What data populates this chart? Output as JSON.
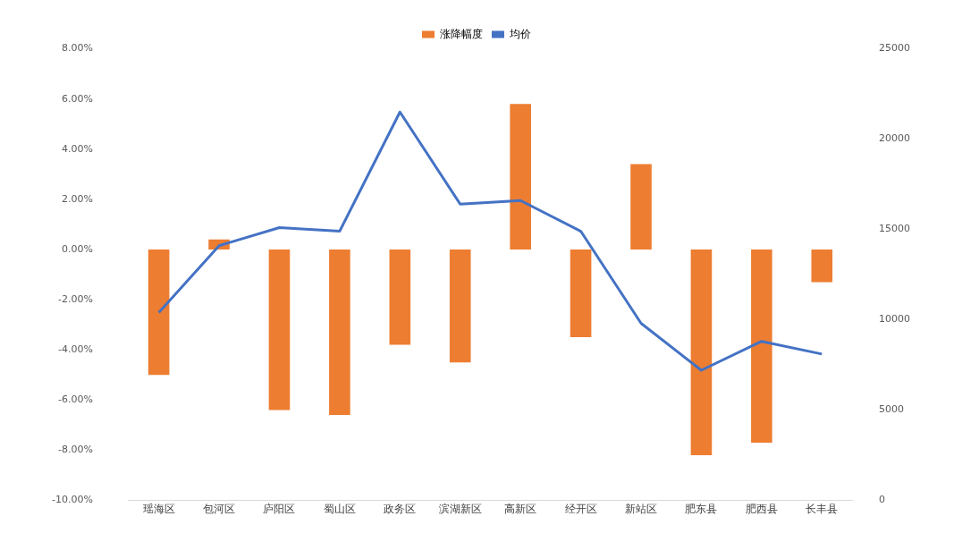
{
  "chart_data": {
    "type": "bar",
    "categories": [
      "瑶海区",
      "包河区",
      "庐阳区",
      "蜀山区",
      "政务区",
      "滨湖新区",
      "高新区",
      "经开区",
      "新站区",
      "肥东县",
      "肥西县",
      "长丰县"
    ],
    "series": [
      {
        "name": "涨降幅度",
        "color": "#ed7d31",
        "values": [
          -5.0,
          0.4,
          -6.4,
          -6.6,
          -3.8,
          -4.5,
          5.8,
          -3.5,
          3.4,
          -8.2,
          -7.7,
          -1.3
        ]
      },
      {
        "name": "均价",
        "type": "line",
        "axis": "y2",
        "color": "#4472c4",
        "values": [
          10400,
          14100,
          15100,
          14900,
          21500,
          16400,
          16600,
          14900,
          9800,
          7200,
          8800,
          8100
        ]
      }
    ],
    "ylim": [
      -10,
      8
    ],
    "yticks": [
      {
        "value": -10,
        "label": "-10.00%"
      },
      {
        "value": -8,
        "label": "-8.00%"
      },
      {
        "value": -6,
        "label": "-6.00%"
      },
      {
        "value": -4,
        "label": "-4.00%"
      },
      {
        "value": -2,
        "label": "-2.00%"
      },
      {
        "value": 0,
        "label": "0.00%"
      },
      {
        "value": 2,
        "label": "2.00%"
      },
      {
        "value": 4,
        "label": "4.00%"
      },
      {
        "value": 6,
        "label": "6.00%"
      },
      {
        "value": 8,
        "label": "8.00%"
      }
    ],
    "y2lim": [
      0,
      25000
    ],
    "y2ticks": [
      0,
      5000,
      10000,
      15000,
      20000,
      25000
    ],
    "grid": false,
    "legend": "top",
    "marker": "none"
  }
}
